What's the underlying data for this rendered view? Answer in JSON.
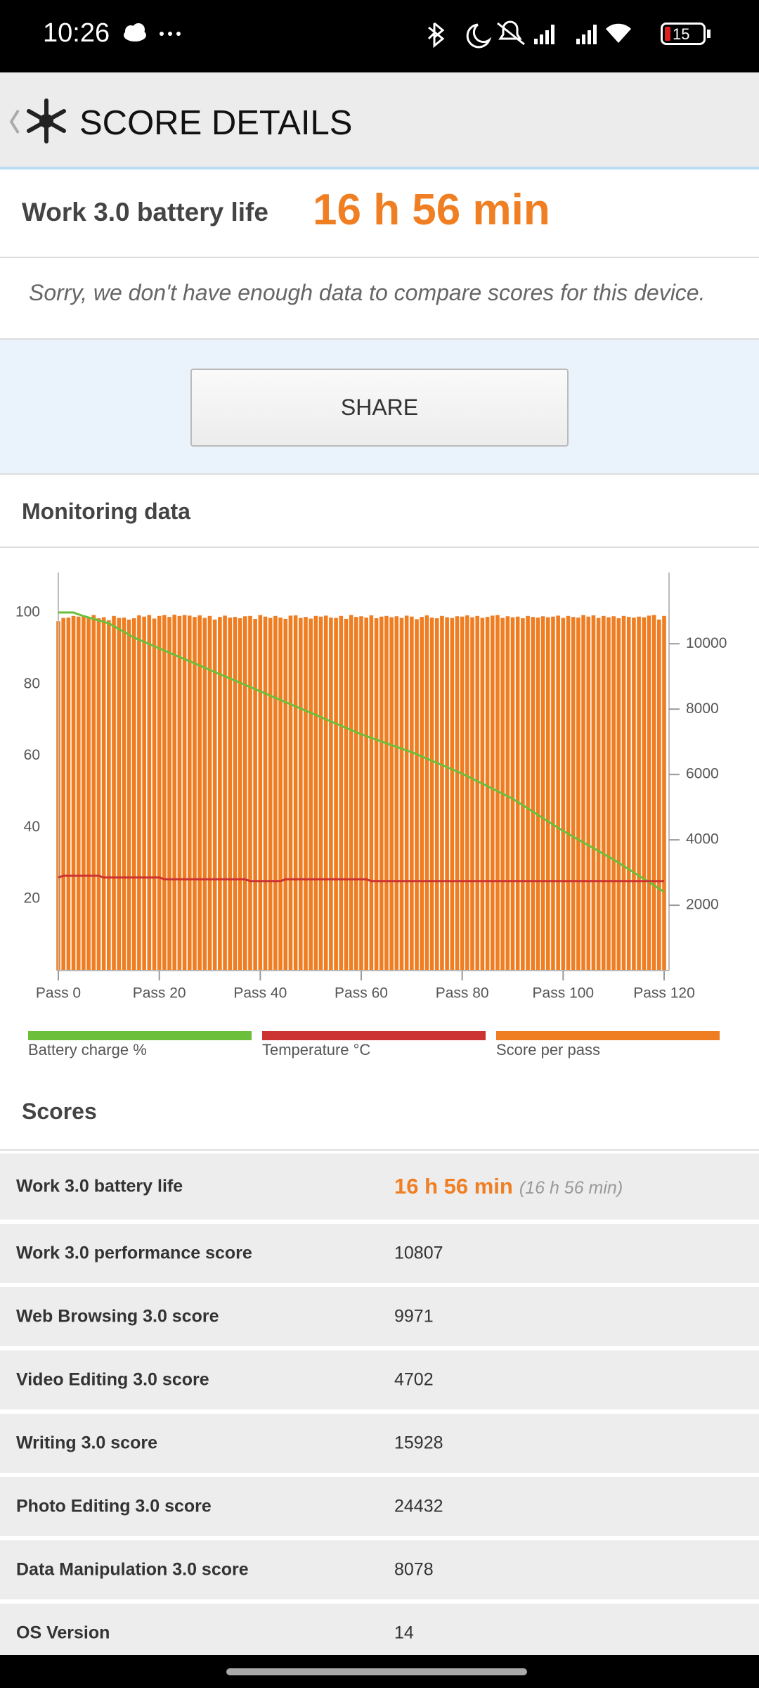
{
  "status_bar": {
    "time": "10:26",
    "battery": "15"
  },
  "header": {
    "title": "SCORE DETAILS"
  },
  "summary": {
    "label": "Work 3.0 battery life",
    "value": "16 h 56 min",
    "note": "Sorry, we don't have enough data to compare scores for this device."
  },
  "share": {
    "label": "SHARE"
  },
  "monitoring": {
    "title": "Monitoring data"
  },
  "chart_data": {
    "type": "bar-line",
    "x": [
      0,
      1,
      2,
      3,
      4,
      5,
      6,
      7,
      8,
      9,
      10,
      11,
      12,
      13,
      14,
      15,
      16,
      17,
      18,
      19,
      20,
      21,
      22,
      23,
      24,
      25,
      26,
      27,
      28,
      29,
      30,
      31,
      32,
      33,
      34,
      35,
      36,
      37,
      38,
      39,
      40,
      41,
      42,
      43,
      44,
      45,
      46,
      47,
      48,
      49,
      50,
      51,
      52,
      53,
      54,
      55,
      56,
      57,
      58,
      59,
      60,
      61,
      62,
      63,
      64,
      65,
      66,
      67,
      68,
      69,
      70,
      71,
      72,
      73,
      74,
      75,
      76,
      77,
      78,
      79,
      80,
      81,
      82,
      83,
      84,
      85,
      86,
      87,
      88,
      89,
      90,
      91,
      92,
      93,
      94,
      95,
      96,
      97,
      98,
      99,
      100,
      101,
      102,
      103,
      104,
      105,
      106,
      107,
      108,
      109,
      110,
      111,
      112,
      113,
      114,
      115,
      116,
      117,
      118,
      119,
      120
    ],
    "xlim": [
      0,
      120
    ],
    "xticks": [
      {
        "value": 0,
        "label": "Pass 0"
      },
      {
        "value": 20,
        "label": "Pass 20"
      },
      {
        "value": 40,
        "label": "Pass 40"
      },
      {
        "value": 60,
        "label": "Pass 60"
      },
      {
        "value": 80,
        "label": "Pass 80"
      },
      {
        "value": 100,
        "label": "Pass 100"
      },
      {
        "value": 120,
        "label": "Pass 120"
      }
    ],
    "ylim": [
      0,
      110
    ],
    "yticks": [
      20,
      40,
      60,
      80,
      100
    ],
    "y2lim": [
      0,
      12050
    ],
    "y2ticks": [
      2000,
      4000,
      6000,
      8000,
      10000
    ],
    "grid": false,
    "series": [
      {
        "name": "Battery charge %",
        "color": "#6cbf3a",
        "kind": "line",
        "x": [
          0,
          3,
          5,
          10,
          15,
          20,
          30,
          40,
          50,
          60,
          70,
          80,
          90,
          100,
          110,
          120
        ],
        "values": [
          100,
          100,
          99,
          97,
          93,
          90,
          84,
          78,
          72,
          66,
          61,
          55,
          48,
          39,
          31,
          22
        ]
      },
      {
        "name": "Temperature °C",
        "color": "#cc3333",
        "kind": "line",
        "x": [
          0,
          1,
          2,
          8,
          9,
          10,
          20,
          21,
          37,
          38,
          44,
          45,
          61,
          62,
          80,
          81,
          120
        ],
        "values": [
          26,
          26.5,
          26.5,
          26.5,
          26,
          26,
          26,
          25.5,
          25.5,
          25,
          25,
          25.5,
          25.5,
          25,
          25,
          25,
          25
        ]
      },
      {
        "name": "Score per pass",
        "color": "#ef7d22",
        "kind": "bar",
        "axis": "y2",
        "values": [
          10690,
          10790,
          10800,
          10850,
          10830,
          10870,
          10800,
          10880,
          10780,
          10810,
          10720,
          10850,
          10790,
          10800,
          10740,
          10780,
          10870,
          10830,
          10880,
          10770,
          10850,
          10880,
          10820,
          10890,
          10850,
          10880,
          10860,
          10820,
          10870,
          10790,
          10850,
          10740,
          10820,
          10860,
          10800,
          10820,
          10780,
          10840,
          10850,
          10760,
          10880,
          10830,
          10790,
          10850,
          10800,
          10760,
          10860,
          10870,
          10790,
          10820,
          10770,
          10850,
          10830,
          10860,
          10800,
          10790,
          10850,
          10760,
          10880,
          10820,
          10840,
          10800,
          10870,
          10780,
          10830,
          10850,
          10810,
          10840,
          10790,
          10860,
          10830,
          10750,
          10820,
          10870,
          10800,
          10780,
          10850,
          10810,
          10790,
          10840,
          10830,
          10870,
          10810,
          10850,
          10790,
          10820,
          10860,
          10880,
          10790,
          10840,
          10810,
          10830,
          10780,
          10850,
          10820,
          10800,
          10840,
          10810,
          10830,
          10860,
          10790,
          10850,
          10820,
          10800,
          10880,
          10830,
          10870,
          10790,
          10850,
          10810,
          10840,
          10780,
          10850,
          10820,
          10800,
          10830,
          10810,
          10860,
          10880,
          10740,
          10850
        ]
      }
    ]
  },
  "scores": {
    "title": "Scores",
    "rows": [
      {
        "label": "Work 3.0 battery life",
        "value": "16 h 56 min",
        "note": "(16 h 56 min)"
      },
      {
        "label": "Work 3.0 performance score",
        "value": 10807
      },
      {
        "label": "Web Browsing 3.0 score",
        "value": 9971
      },
      {
        "label": "Video Editing 3.0 score",
        "value": 4702
      },
      {
        "label": "Writing 3.0 score",
        "value": 15928
      },
      {
        "label": "Photo Editing 3.0 score",
        "value": 24432
      },
      {
        "label": "Data Manipulation 3.0 score",
        "value": 8078
      },
      {
        "label": "OS Version",
        "value": 14
      }
    ]
  }
}
